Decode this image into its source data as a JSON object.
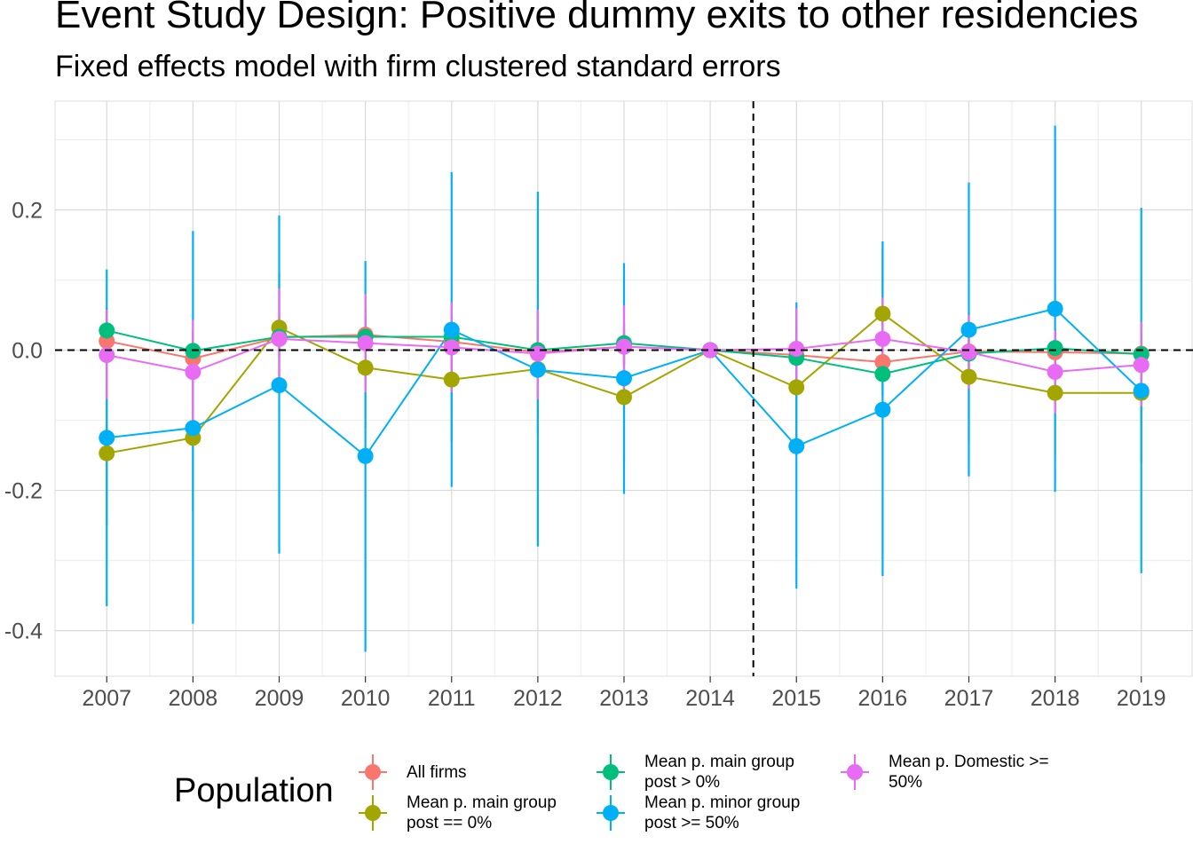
{
  "title": "Event Study Design: Positive dummy exits to other residencies",
  "subtitle": "Fixed effects model with firm clustered standard errors",
  "legend": {
    "title": "Population",
    "items": [
      {
        "label": "All firms",
        "color": "#F8766D"
      },
      {
        "label": "Mean p. main group\npost == 0%",
        "color": "#A3A500"
      },
      {
        "label": "Mean p. main group\npost > 0%",
        "color": "#00BF7D"
      },
      {
        "label": "Mean p. minor group\npost >= 50%",
        "color": "#00B0F6"
      },
      {
        "label": "Mean p. Domestic >=\n50%",
        "color": "#E76BF3"
      }
    ]
  },
  "chart_data": {
    "type": "line",
    "title": "Event Study Design: Positive dummy exits to other residencies",
    "subtitle": "Fixed effects model with firm clustered standard errors",
    "xlabel": "",
    "ylabel": "",
    "x": [
      2007,
      2008,
      2009,
      2010,
      2011,
      2012,
      2013,
      2014,
      2015,
      2016,
      2017,
      2018,
      2019
    ],
    "xlim": [
      2006.4,
      2019.6
    ],
    "ylim": [
      -0.465,
      0.355
    ],
    "yticks": [
      -0.4,
      -0.2,
      0.0,
      0.2
    ],
    "ytick_labels": [
      "-0.4",
      "-0.2",
      "0.0",
      "0.2"
    ],
    "reference_lines": {
      "y": 0,
      "x": 2014.5,
      "style": "dashed"
    },
    "grid": true,
    "legend_position": "bottom",
    "series": [
      {
        "name": "All firms",
        "color": "#F8766D",
        "values": [
          0.013,
          -0.012,
          0.018,
          0.022,
          0.012,
          -0.003,
          0.005,
          0.0,
          -0.007,
          -0.017,
          -0.002,
          -0.003,
          -0.005
        ],
        "lower": [
          -0.02,
          -0.04,
          -0.01,
          -0.005,
          -0.015,
          -0.03,
          -0.02,
          0.0,
          -0.035,
          -0.045,
          -0.03,
          -0.03,
          -0.03
        ],
        "upper": [
          0.045,
          0.015,
          0.045,
          0.05,
          0.04,
          0.025,
          0.03,
          0.0,
          0.02,
          0.01,
          0.025,
          0.025,
          0.02
        ]
      },
      {
        "name": "Mean p. main group post == 0%",
        "color": "#A3A500",
        "values": [
          -0.147,
          -0.125,
          0.032,
          -0.025,
          -0.042,
          -0.027,
          -0.067,
          0.0,
          -0.053,
          0.052,
          -0.038,
          -0.061,
          -0.061
        ],
        "lower": [
          -0.25,
          -0.23,
          -0.05,
          -0.11,
          -0.13,
          -0.12,
          -0.16,
          0.0,
          -0.15,
          -0.04,
          -0.13,
          -0.15,
          -0.16
        ],
        "upper": [
          -0.045,
          -0.02,
          0.11,
          0.06,
          0.045,
          0.065,
          0.025,
          0.0,
          0.045,
          0.145,
          0.055,
          0.03,
          0.04
        ]
      },
      {
        "name": "Mean p. main group post > 0%",
        "color": "#00BF7D",
        "values": [
          0.028,
          -0.001,
          0.019,
          0.019,
          0.019,
          0.0,
          0.01,
          0.0,
          -0.011,
          -0.034,
          -0.005,
          0.003,
          -0.006
        ],
        "lower": [
          -0.005,
          -0.03,
          -0.01,
          -0.01,
          -0.01,
          -0.03,
          -0.02,
          0.0,
          -0.04,
          -0.065,
          -0.035,
          -0.025,
          -0.035
        ],
        "upper": [
          0.06,
          0.028,
          0.048,
          0.048,
          0.048,
          0.03,
          0.04,
          0.0,
          0.018,
          -0.003,
          0.025,
          0.03,
          0.022
        ]
      },
      {
        "name": "Mean p. minor group post >= 50%",
        "color": "#00B0F6",
        "values": [
          -0.125,
          -0.111,
          -0.05,
          -0.151,
          0.029,
          -0.028,
          -0.04,
          0.0,
          -0.137,
          -0.085,
          0.029,
          0.059,
          -0.058
        ],
        "lower": [
          -0.365,
          -0.39,
          -0.29,
          -0.43,
          -0.195,
          -0.28,
          -0.205,
          0.0,
          -0.34,
          -0.322,
          -0.18,
          -0.202,
          -0.318
        ],
        "upper": [
          0.115,
          0.17,
          0.192,
          0.127,
          0.254,
          0.226,
          0.124,
          0.0,
          0.068,
          0.155,
          0.239,
          0.32,
          0.203
        ]
      },
      {
        "name": "Mean p. Domestic >= 50%",
        "color": "#E76BF3",
        "values": [
          -0.007,
          -0.031,
          0.016,
          0.01,
          0.004,
          -0.005,
          0.005,
          0.0,
          0.002,
          0.016,
          -0.003,
          -0.031,
          -0.021
        ],
        "lower": [
          -0.07,
          -0.1,
          -0.06,
          -0.06,
          -0.06,
          -0.07,
          -0.055,
          0.0,
          -0.055,
          -0.045,
          -0.055,
          -0.09,
          -0.08
        ],
        "upper": [
          0.058,
          0.043,
          0.088,
          0.08,
          0.068,
          0.058,
          0.064,
          0.0,
          0.06,
          0.075,
          0.05,
          0.028,
          0.04
        ]
      }
    ]
  }
}
